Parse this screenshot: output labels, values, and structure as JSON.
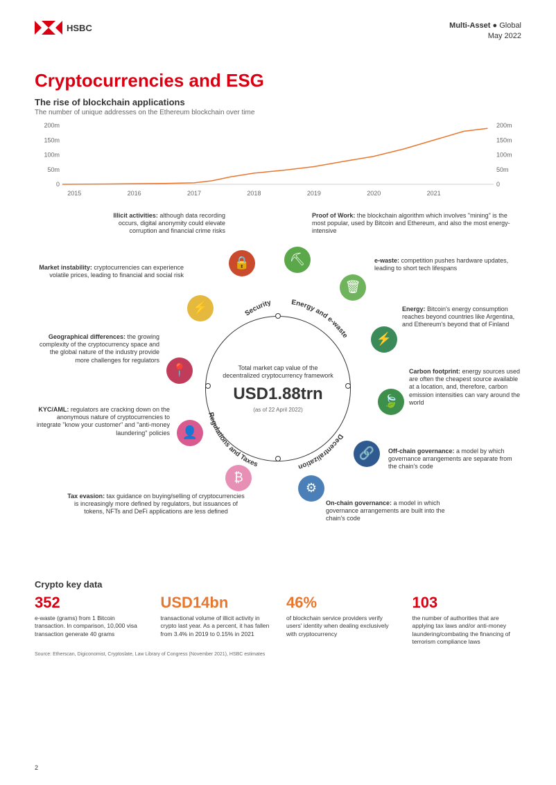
{
  "header": {
    "brand": "HSBC",
    "meta_line1_a": "Multi-Asset",
    "meta_line1_b": "Global",
    "meta_line2": "May 2022"
  },
  "title": {
    "text": "Cryptocurrencies and ESG",
    "color": "#db0011"
  },
  "chart": {
    "subtitle": "The rise of blockchain applications",
    "desc": "The number of unique addresses on the Ethereum blockchain over time",
    "type": "line",
    "x_labels": [
      "2015",
      "2016",
      "2017",
      "2018",
      "2019",
      "2020",
      "2021"
    ],
    "y_ticks": [
      0,
      50,
      100,
      150,
      200
    ],
    "y_tick_labels": [
      "0",
      "50m",
      "100m",
      "150m",
      "200m"
    ],
    "ylim": [
      0,
      200
    ],
    "line_color": "#e8762c",
    "axis_color": "#cccccc",
    "tick_font_size": 9,
    "series": [
      {
        "x": 2014.8,
        "y": 0
      },
      {
        "x": 2015.5,
        "y": 1
      },
      {
        "x": 2016.0,
        "y": 2
      },
      {
        "x": 2016.5,
        "y": 3
      },
      {
        "x": 2017.0,
        "y": 5
      },
      {
        "x": 2017.3,
        "y": 12
      },
      {
        "x": 2017.6,
        "y": 25
      },
      {
        "x": 2018.0,
        "y": 38
      },
      {
        "x": 2018.5,
        "y": 48
      },
      {
        "x": 2019.0,
        "y": 60
      },
      {
        "x": 2019.5,
        "y": 78
      },
      {
        "x": 2020.0,
        "y": 95
      },
      {
        "x": 2020.5,
        "y": 120
      },
      {
        "x": 2021.0,
        "y": 150
      },
      {
        "x": 2021.5,
        "y": 180
      },
      {
        "x": 2021.9,
        "y": 190
      }
    ]
  },
  "center": {
    "top": "Total market cap value of the decentralized cryptocurrency framework",
    "value": "USD1.88trn",
    "date": "(as of 22 April 2022)"
  },
  "categories": {
    "security": "Security",
    "energy": "Energy and e-waste",
    "decentral": "Decentralization",
    "reg": "Regulations and Taxes"
  },
  "nodes": {
    "illicit": {
      "title": "Illicit activities:",
      "body": " although data recording occurs, digital anonymity could elevate corruption and financial crime risks",
      "color": "#c94a2d"
    },
    "market": {
      "title": "Market instability:",
      "body": " cryptocurrencies can experience volatile prices, leading to financial and social risk",
      "color": "#e5b93e"
    },
    "geo": {
      "title": "Geographical differences:",
      "body": " the growing complexity of the cryptocurrency space and the global nature of the industry provide more challenges for regulators",
      "color": "#c13b5a"
    },
    "kyc": {
      "title": "KYC/AML:",
      "body": " regulators are cracking down on the anonymous nature of cryptocurrencies to integrate \"know your customer\" and \"anti-money laundering\" policies",
      "color": "#d85a8f"
    },
    "tax": {
      "title": "Tax evasion:",
      "body": " tax guidance on buying/selling of cryptocurrencies is increasingly more defined by regulators, but issuances of tokens, NFTs and DeFi applications are less defined",
      "color": "#e88fb5"
    },
    "pow": {
      "title": "Proof of Work:",
      "body": " the blockchain algorithm which involves \"mining\" is the most popular, used by Bitcoin and Ethereum, and also the most energy-intensive",
      "color": "#5aa84a"
    },
    "ewaste": {
      "title": "e-waste:",
      "body": " competition pushes hardware updates, leading to short tech lifespans",
      "color": "#6fb35d"
    },
    "energy": {
      "title": "Energy:",
      "body": " Bitcoin's energy consumption reaches beyond countries like Argentina, and Ethereum's beyond that of Finland",
      "color": "#3a8a5a"
    },
    "carbon": {
      "title": "Carbon footprint:",
      "body": " energy sources used are often the cheapest source available at a location, and, therefore, carbon emission intensities can vary around the world",
      "color": "#3e8f4c"
    },
    "offchain": {
      "title": "Off-chain governance:",
      "body": " a model by which governance arrangements are separate from the chain's code",
      "color": "#2e5a8f"
    },
    "onchain": {
      "title": "On-chain governance:",
      "body": " a model in which governance arrangements are built into the chain's code",
      "color": "#4a7fb8"
    }
  },
  "keydata": {
    "title": "Crypto key data",
    "items": [
      {
        "value": "352",
        "color": "#db0011",
        "desc": "e-waste (grams) from 1 Bitcoin transaction. In comparison, 10,000 visa transaction generate 40 grams"
      },
      {
        "value": "USD14bn",
        "color": "#e8762c",
        "desc": "transactional volume of illicit activity in crypto last year. As a percent, it has fallen from 3.4% in 2019 to 0.15% in 2021"
      },
      {
        "value": "46%",
        "color": "#e8762c",
        "desc": "of blockchain service providers verify users' identity when dealing exclusively with cryptocurrency"
      },
      {
        "value": "103",
        "color": "#db0011",
        "desc": "the number of authorities that are applying tax laws and/or anti-money laundering/combating the financing of terrorism compliance laws"
      }
    ]
  },
  "source": "Source: Etherscan, Digiconomist, Cryptoslate, Law Library of Congress (November 2021), HSBC estimates",
  "page_number": "2"
}
